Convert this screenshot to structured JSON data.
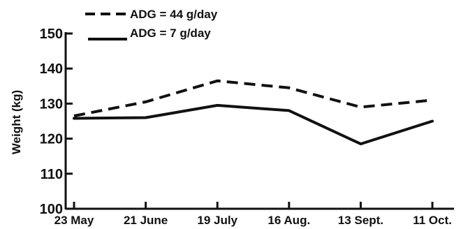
{
  "chart_data": {
    "type": "line",
    "categories": [
      "23 May",
      "21 June",
      "19 July",
      "16 Aug.",
      "13 Sept.",
      "11 Oct."
    ],
    "ylabel": "Weight (kg)",
    "xlabel": "",
    "ylim": [
      100,
      150
    ],
    "yticks": [
      "100",
      "110",
      "120",
      "130",
      "140",
      "150"
    ],
    "grid": false,
    "legend_position": "top-left",
    "series": [
      {
        "name": "ADG = 44 g/day",
        "style": "dashed",
        "color": "#111111",
        "values": [
          126.5,
          130.5,
          136.5,
          134.5,
          129,
          131
        ]
      },
      {
        "name": "ADG = 7 g/day",
        "style": "solid",
        "color": "#111111",
        "values": [
          125.8,
          126,
          129.5,
          128,
          118.5,
          125
        ]
      }
    ]
  }
}
